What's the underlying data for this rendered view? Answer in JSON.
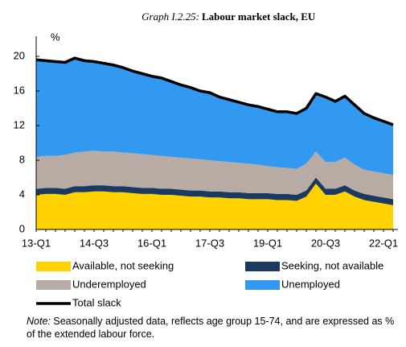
{
  "chart_data": {
    "type": "stacked_area",
    "title_label": "Graph I.2.25:",
    "title": "Labour market slack, EU",
    "y_unit": "%",
    "categories": [
      "13-Q1",
      null,
      null,
      null,
      null,
      null,
      "14-Q3",
      null,
      null,
      null,
      null,
      null,
      "16-Q1",
      null,
      null,
      null,
      null,
      null,
      "17-Q3",
      null,
      null,
      null,
      null,
      null,
      "19-Q1",
      null,
      null,
      null,
      null,
      null,
      "20-Q3",
      null,
      null,
      null,
      null,
      null,
      "22-Q1",
      null
    ],
    "ylim": [
      0,
      20
    ],
    "yticks": [
      0,
      4,
      8,
      12,
      16,
      20
    ],
    "series": [
      {
        "name": "Available, not seeking",
        "color": "#ffd200",
        "kind": "area",
        "values": [
          4.0,
          4.1,
          4.1,
          4.0,
          4.3,
          4.3,
          4.4,
          4.4,
          4.3,
          4.3,
          4.2,
          4.1,
          4.1,
          4.0,
          4.0,
          3.9,
          3.8,
          3.8,
          3.7,
          3.7,
          3.6,
          3.6,
          3.5,
          3.5,
          3.5,
          3.4,
          3.4,
          3.3,
          3.8,
          5.3,
          4.0,
          4.0,
          4.4,
          3.8,
          3.4,
          3.2,
          3.0,
          2.8
        ]
      },
      {
        "name": "Seeking, not available",
        "color": "#1b3a60",
        "kind": "area",
        "values": [
          0.7,
          0.7,
          0.7,
          0.7,
          0.7,
          0.7,
          0.7,
          0.7,
          0.7,
          0.7,
          0.7,
          0.7,
          0.7,
          0.7,
          0.7,
          0.7,
          0.7,
          0.7,
          0.7,
          0.7,
          0.7,
          0.7,
          0.7,
          0.7,
          0.7,
          0.7,
          0.7,
          0.7,
          0.7,
          0.7,
          0.7,
          0.7,
          0.7,
          0.7,
          0.7,
          0.7,
          0.7,
          0.7
        ]
      },
      {
        "name": "Underemployed",
        "color": "#b7aba4",
        "kind": "area",
        "values": [
          3.7,
          3.7,
          3.7,
          3.9,
          3.9,
          4.0,
          4.0,
          3.9,
          4.0,
          3.9,
          3.9,
          3.9,
          3.8,
          3.8,
          3.7,
          3.7,
          3.7,
          3.6,
          3.6,
          3.5,
          3.5,
          3.4,
          3.4,
          3.3,
          3.1,
          3.1,
          3.0,
          3.0,
          3.1,
          3.0,
          3.1,
          3.1,
          3.2,
          3.0,
          2.8,
          2.8,
          2.8,
          2.8
        ]
      },
      {
        "name": "Unemployed",
        "color": "#3399f0",
        "kind": "area",
        "values": [
          11.2,
          11.0,
          10.9,
          10.7,
          10.9,
          10.5,
          10.3,
          10.2,
          10.0,
          9.8,
          9.5,
          9.3,
          9.1,
          9.0,
          8.7,
          8.4,
          8.2,
          7.9,
          7.8,
          7.4,
          7.2,
          7.0,
          6.8,
          6.7,
          6.6,
          6.4,
          6.5,
          6.4,
          6.4,
          6.7,
          7.5,
          7.0,
          7.1,
          6.9,
          6.5,
          6.2,
          6.0,
          5.8
        ]
      },
      {
        "name": "Total slack",
        "color": "#000000",
        "kind": "line",
        "values": [
          19.6,
          19.5,
          19.4,
          19.3,
          19.8,
          19.5,
          19.4,
          19.2,
          19.0,
          18.7,
          18.3,
          18.0,
          17.7,
          17.5,
          17.1,
          16.7,
          16.4,
          16.0,
          15.8,
          15.3,
          15.0,
          14.7,
          14.4,
          14.2,
          13.9,
          13.6,
          13.6,
          13.4,
          14.0,
          15.7,
          15.3,
          14.8,
          15.4,
          14.4,
          13.4,
          12.9,
          12.5,
          12.1
        ]
      }
    ],
    "note_label": "Note:",
    "note": "Seasonally adjusted data, reflects age group 15-74, and are expressed as % of the extended labour force."
  }
}
